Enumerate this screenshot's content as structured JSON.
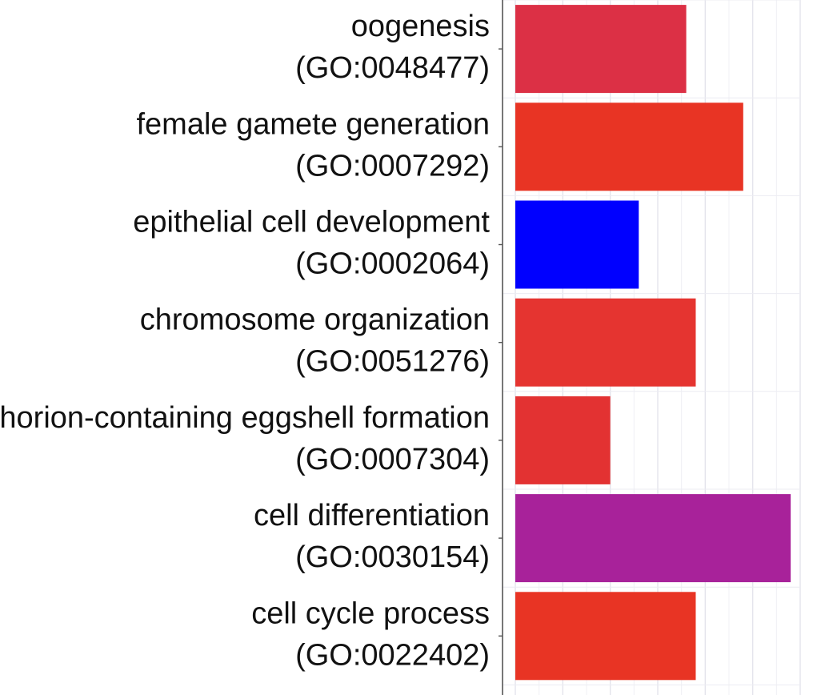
{
  "chart_data": {
    "type": "bar",
    "orientation": "horizontal",
    "title": "",
    "xlabel": "",
    "ylabel": "",
    "categories": [
      {
        "name": "oogenesis",
        "id": "(GO:0048477)"
      },
      {
        "name": "female gamete generation",
        "id": "(GO:0007292)"
      },
      {
        "name": "epithelial cell development",
        "id": "(GO:0002064)"
      },
      {
        "name": "chromosome organization",
        "id": "(GO:0051276)"
      },
      {
        "name": "chorion-containing eggshell formation",
        "id": "(GO:0007304)"
      },
      {
        "name": "cell differentiation",
        "id": "(GO:0030154)"
      },
      {
        "name": "cell cycle process",
        "id": "(GO:0022402)"
      }
    ],
    "values": [
      3.6,
      4.8,
      2.6,
      3.8,
      2.0,
      5.8,
      3.8
    ],
    "colors": [
      "#dc3045",
      "#e83424",
      "#0000ff",
      "#e53430",
      "#e33232",
      "#a8229a",
      "#e83424"
    ],
    "xlim": [
      0,
      6
    ],
    "grid": true,
    "legend": "none"
  }
}
